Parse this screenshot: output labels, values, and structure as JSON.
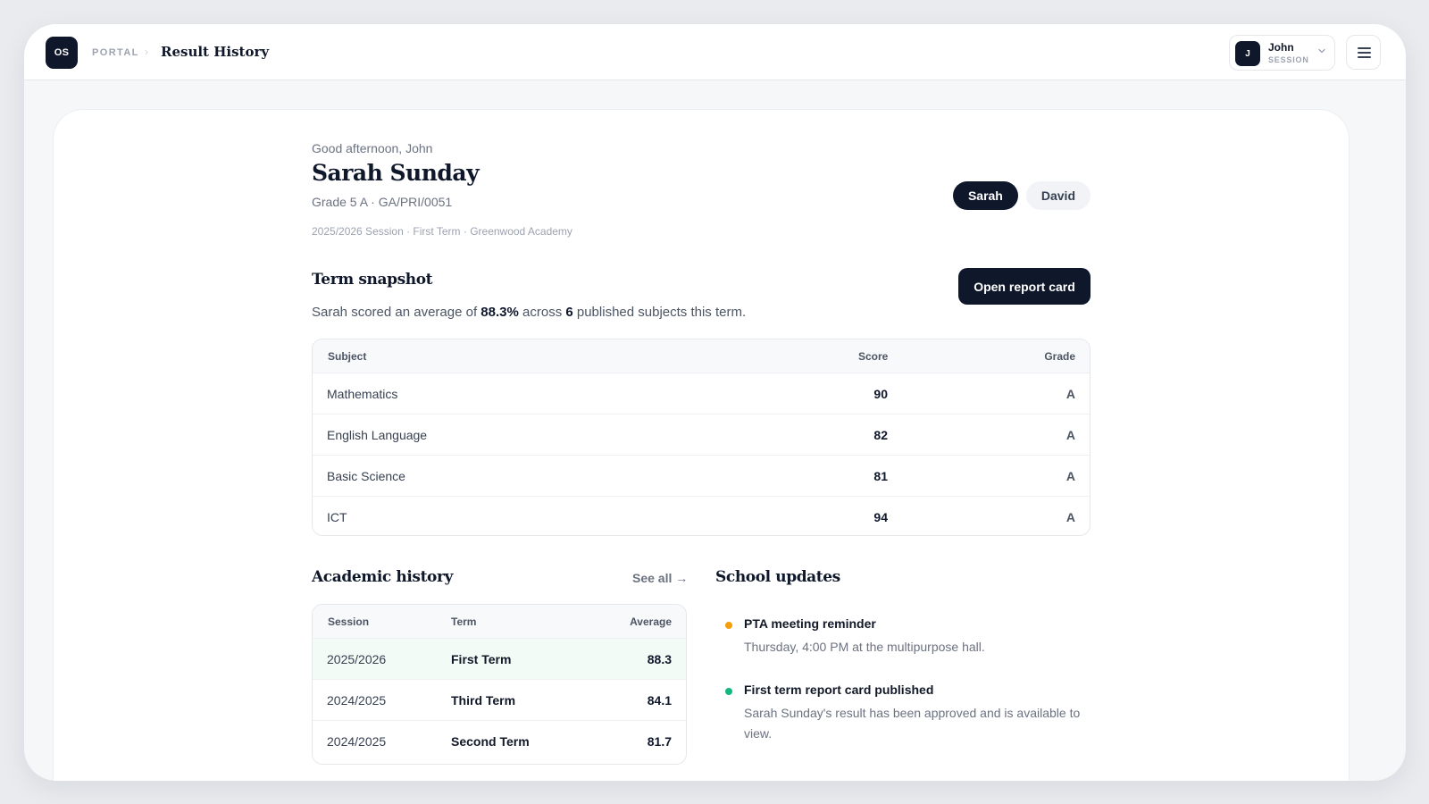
{
  "topbar": {
    "logo_text": "OS",
    "breadcrumb_root": "PORTAL",
    "breadcrumb_page": "Result History",
    "user": {
      "initial": "J",
      "name": "John",
      "sub": "SESSION"
    }
  },
  "profile": {
    "greeting": "Good afternoon, John",
    "student_name": "Sarah Sunday",
    "class_info": "Grade 5 A · GA/PRI/0051",
    "session_info": "2025/2026 Session · First Term · Greenwood Academy",
    "children": [
      {
        "label": "Sarah",
        "active": true
      },
      {
        "label": "David",
        "active": false
      }
    ]
  },
  "snapshot": {
    "title": "Term snapshot",
    "summary_prefix": "Sarah scored an average of ",
    "average": "88.3%",
    "summary_mid": " across ",
    "subject_count": "6",
    "summary_suffix": " published subjects this term.",
    "button_label": "Open report card",
    "columns": {
      "subject": "Subject",
      "score": "Score",
      "grade": "Grade"
    },
    "rows": [
      {
        "subject": "Mathematics",
        "score": "90",
        "grade": "A"
      },
      {
        "subject": "English Language",
        "score": "82",
        "grade": "A"
      },
      {
        "subject": "Basic Science",
        "score": "81",
        "grade": "A"
      },
      {
        "subject": "ICT",
        "score": "94",
        "grade": "A"
      }
    ]
  },
  "history": {
    "title": "Academic history",
    "see_all": "See all →",
    "columns": {
      "session": "Session",
      "term": "Term",
      "average": "Average"
    },
    "rows": [
      {
        "session": "2025/2026",
        "term": "First Term",
        "average": "88.3"
      },
      {
        "session": "2024/2025",
        "term": "Third Term",
        "average": "84.1"
      },
      {
        "session": "2024/2025",
        "term": "Second Term",
        "average": "81.7"
      }
    ]
  },
  "updates": {
    "title": "School updates",
    "items": [
      {
        "title": "PTA meeting reminder",
        "body": "Thursday, 4:00 PM at the multipurpose hall.",
        "color": "#f59e0b"
      },
      {
        "title": "First term report card published",
        "body": "Sarah Sunday's result has been approved and is available to view.",
        "color": "#10b981"
      }
    ]
  }
}
